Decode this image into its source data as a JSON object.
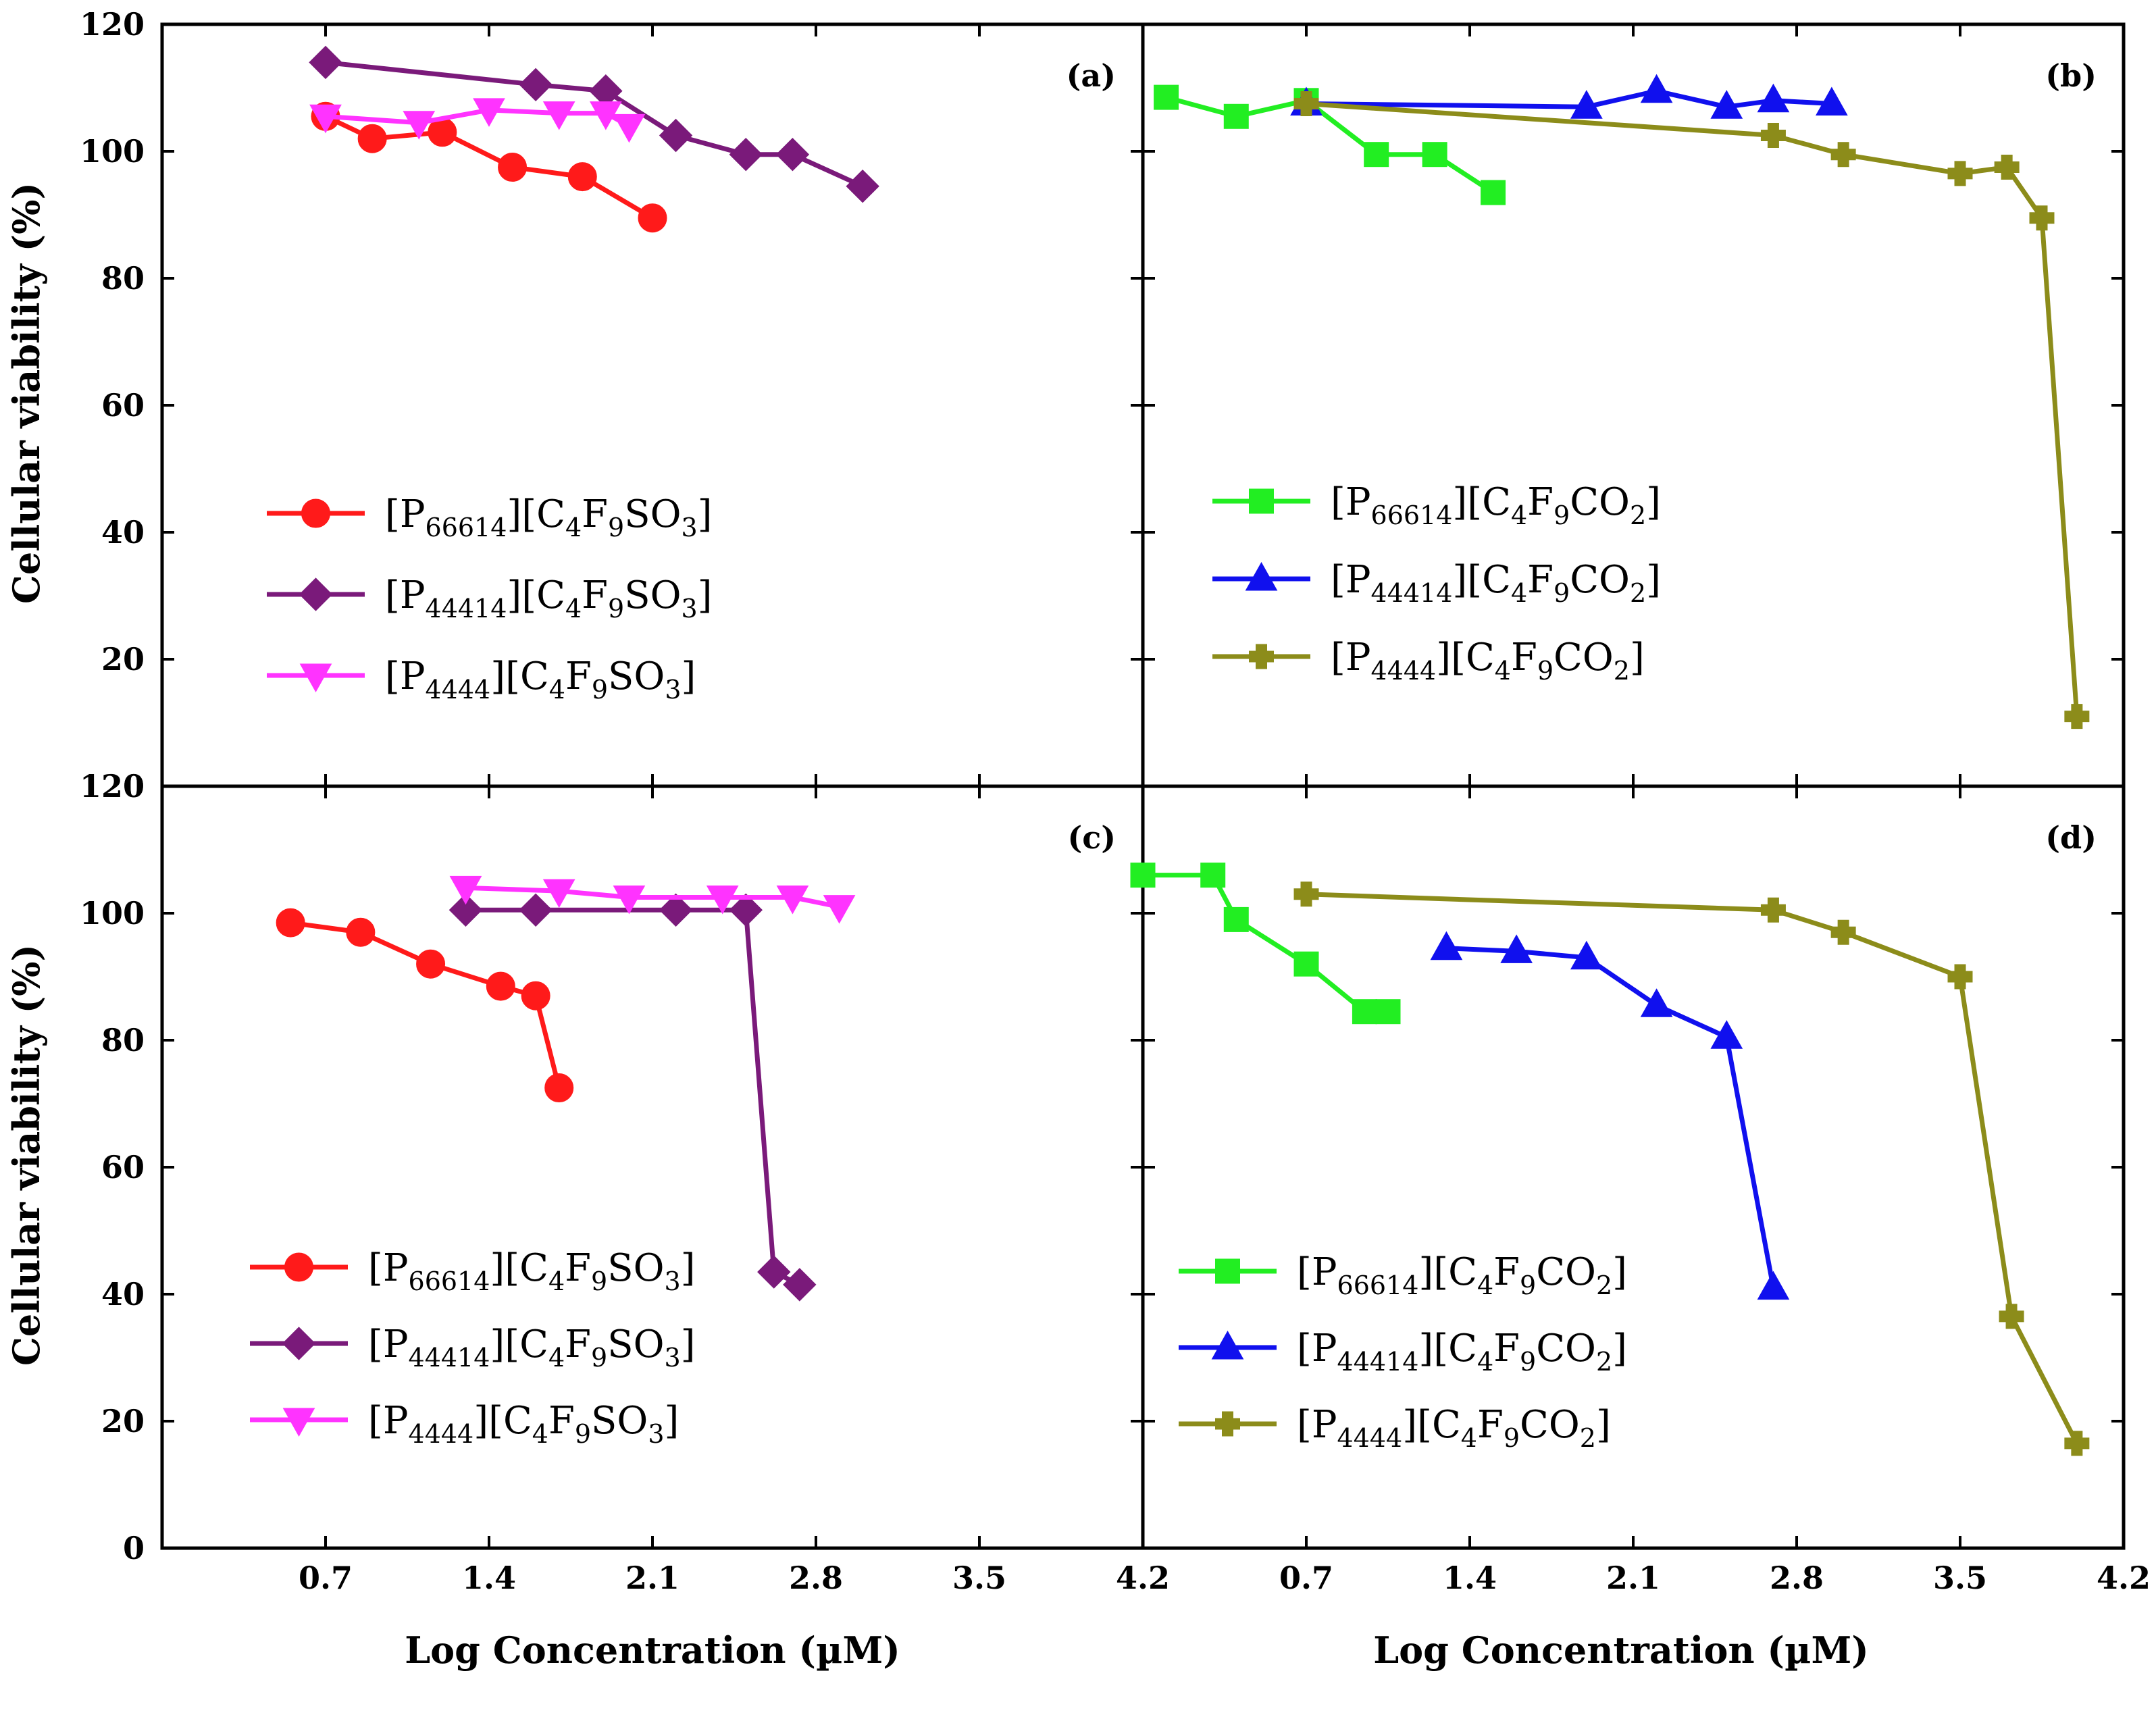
{
  "figure": {
    "ylabel": "Cellular viability (%)",
    "xlabel": "Log Concentration (µM)"
  },
  "chart_data": [
    {
      "panel": "(a)",
      "type": "line",
      "xlabel": "Log Concentration (µM)",
      "ylabel": "Cellular viability (%)",
      "xlim": [
        0,
        4.2
      ],
      "ylim": [
        0,
        120
      ],
      "xticks": [
        "0.7",
        "1.4",
        "2.1",
        "2.8",
        "3.5",
        "4.2"
      ],
      "yticks": [
        "0",
        "20",
        "40",
        "60",
        "80",
        "100",
        "120"
      ],
      "legend_position": "lower-left",
      "series": [
        {
          "legend": [
            "[P",
            "66614",
            "][C",
            "4",
            "F",
            "9",
            "SO",
            "3",
            "]"
          ],
          "color": "#ff1a1a",
          "marker": "circle",
          "x": [
            0.7,
            0.9,
            1.2,
            1.5,
            1.8,
            2.1
          ],
          "y": [
            105.5,
            102,
            103,
            97.5,
            96,
            89.5
          ]
        },
        {
          "legend": [
            "[P",
            "44414",
            "][C",
            "4",
            "F",
            "9",
            "SO",
            "3",
            "]"
          ],
          "color": "#7a1a7a",
          "marker": "diamond",
          "x": [
            0.7,
            1.6,
            1.9,
            2.2,
            2.5,
            2.7,
            3.0
          ],
          "y": [
            114,
            110.5,
            109.5,
            102.5,
            99.5,
            99.5,
            94.5
          ]
        },
        {
          "legend": [
            "[P",
            "4444",
            "][C",
            "4",
            "F",
            "9",
            "SO",
            "3",
            "]"
          ],
          "color": "#ff33ff",
          "marker": "triangle-down",
          "x": [
            0.7,
            1.1,
            1.4,
            1.7,
            1.9,
            2.0
          ],
          "y": [
            105.5,
            104.5,
            106.5,
            106,
            106,
            104
          ]
        }
      ]
    },
    {
      "panel": "(b)",
      "type": "line",
      "xlabel": "Log Concentration (µM)",
      "xlim": [
        0,
        4.2
      ],
      "ylim": [
        0,
        120
      ],
      "xticks": [
        "0.7",
        "1.4",
        "2.1",
        "2.8",
        "3.5",
        "4.2"
      ],
      "legend_position": "middle-left",
      "series": [
        {
          "legend": [
            "[P",
            "66614",
            "][C",
            "4",
            "F",
            "9",
            "CO",
            "2",
            "]"
          ],
          "color": "#22ee22",
          "marker": "square",
          "x": [
            0.1,
            0.4,
            0.7,
            1.0,
            1.25,
            1.5
          ],
          "y": [
            108.5,
            105.5,
            108,
            99.5,
            99.5,
            93.5
          ]
        },
        {
          "legend": [
            "[P",
            "44414",
            "][C",
            "4",
            "F",
            "9",
            "CO",
            "2",
            "]"
          ],
          "color": "#1010ee",
          "marker": "triangle-up",
          "x": [
            0.7,
            1.9,
            2.2,
            2.5,
            2.7,
            2.95
          ],
          "y": [
            107.5,
            107,
            109.5,
            107,
            108,
            107.5
          ]
        },
        {
          "legend": [
            "[P",
            "4444",
            "][C",
            "4",
            "F",
            "9",
            "CO",
            "2",
            "]"
          ],
          "color": "#8c8c1a",
          "marker": "plus",
          "x": [
            0.7,
            2.7,
            3.0,
            3.5,
            3.7,
            3.85,
            4.0
          ],
          "y": [
            107.5,
            102.5,
            99.5,
            96.5,
            97.5,
            89.5,
            11
          ]
        }
      ]
    },
    {
      "panel": "(c)",
      "type": "line",
      "xlabel": "Log Concentration (µM)",
      "ylabel": "Cellular viability (%)",
      "xlim": [
        0,
        4.2
      ],
      "ylim": [
        0,
        120
      ],
      "xticks": [
        "0.7",
        "1.4",
        "2.1",
        "2.8",
        "3.5",
        "4.2"
      ],
      "yticks": [
        "0",
        "20",
        "40",
        "60",
        "80",
        "100",
        "120"
      ],
      "legend_position": "lower-left",
      "series": [
        {
          "legend": [
            "[P",
            "66614",
            "][C",
            "4",
            "F",
            "9",
            "SO",
            "3",
            "]"
          ],
          "color": "#ff1a1a",
          "marker": "circle",
          "x": [
            0.55,
            0.85,
            1.15,
            1.45,
            1.6,
            1.7
          ],
          "y": [
            98.5,
            97,
            92,
            88.5,
            87,
            72.5
          ]
        },
        {
          "legend": [
            "[P",
            "44414",
            "][C",
            "4",
            "F",
            "9",
            "SO",
            "3",
            "]"
          ],
          "color": "#7a1a7a",
          "marker": "diamond",
          "x": [
            1.3,
            1.6,
            2.2,
            2.5,
            2.62,
            2.73
          ],
          "y": [
            100.5,
            100.5,
            100.5,
            100.5,
            43.5,
            41.5
          ]
        },
        {
          "legend": [
            "[P",
            "4444",
            "][C",
            "4",
            "F",
            "9",
            "SO",
            "3",
            "]"
          ],
          "color": "#ff33ff",
          "marker": "triangle-down",
          "x": [
            1.3,
            1.7,
            2.0,
            2.4,
            2.7,
            2.9
          ],
          "y": [
            104,
            103.5,
            102.5,
            102.5,
            102.5,
            101
          ]
        }
      ]
    },
    {
      "panel": "(d)",
      "type": "line",
      "xlabel": "Log Concentration (µM)",
      "xlim": [
        0,
        4.2
      ],
      "ylim": [
        0,
        120
      ],
      "xticks": [
        "0.7",
        "1.4",
        "2.1",
        "2.8",
        "3.5",
        "4.2"
      ],
      "legend_position": "lower-left",
      "series": [
        {
          "legend": [
            "[P",
            "66614",
            "][C",
            "4",
            "F",
            "9",
            "CO",
            "2",
            "]"
          ],
          "color": "#22ee22",
          "marker": "square",
          "x": [
            0.0,
            0.3,
            0.4,
            0.7,
            0.95,
            1.05
          ],
          "y": [
            106,
            106,
            99,
            92,
            84.5,
            84.5
          ]
        },
        {
          "legend": [
            "[P",
            "44414",
            "][C",
            "4",
            "F",
            "9",
            "CO",
            "2",
            "]"
          ],
          "color": "#1010ee",
          "marker": "triangle-up",
          "x": [
            1.3,
            1.6,
            1.9,
            2.2,
            2.5,
            2.7
          ],
          "y": [
            94.5,
            94,
            93,
            85.5,
            80.5,
            41
          ]
        },
        {
          "legend": [
            "[P",
            "4444",
            "][C",
            "4",
            "F",
            "9",
            "CO",
            "2",
            "]"
          ],
          "color": "#8c8c1a",
          "marker": "plus",
          "x": [
            0.7,
            2.7,
            3.0,
            3.5,
            3.72,
            4.0
          ],
          "y": [
            103,
            100.5,
            97,
            90,
            36.5,
            16.5
          ]
        }
      ]
    }
  ]
}
